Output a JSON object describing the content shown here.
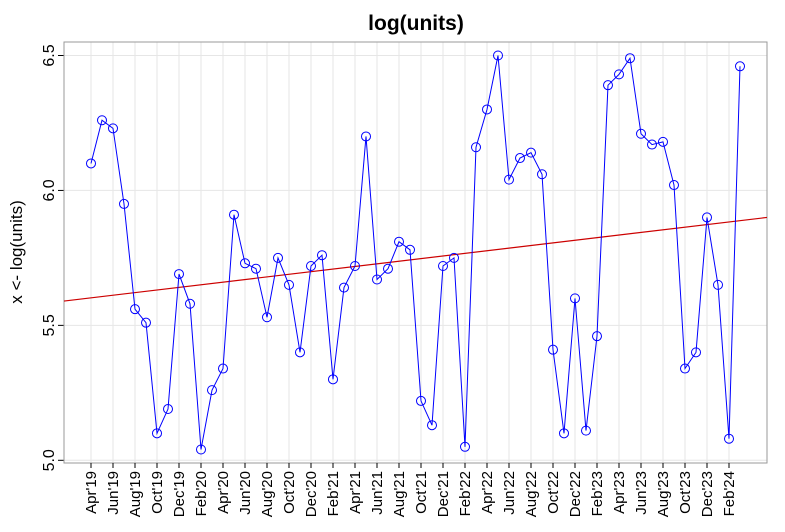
{
  "chart_data": {
    "type": "line",
    "title": "log(units)",
    "y_label": "x <- log(units)",
    "categories": [
      "Apr'19",
      null,
      "Jun'19",
      null,
      "Aug'19",
      null,
      "Oct'19",
      null,
      "Dec'19",
      null,
      "Feb'20",
      null,
      "Apr'20",
      null,
      "Jun'20",
      null,
      "Aug'20",
      null,
      "Oct'20",
      null,
      "Dec'20",
      null,
      "Feb'21",
      null,
      "Apr'21",
      null,
      "Jun'21",
      null,
      "Aug'21",
      null,
      "Oct'21",
      null,
      "Dec'21",
      null,
      "Feb'22",
      null,
      "Apr'22",
      null,
      "Jun'22",
      null,
      "Aug'22",
      null,
      "Oct'22",
      null,
      "Dec'22",
      null,
      "Feb'23",
      null,
      "Apr'23",
      null,
      "Jun'23",
      null,
      "Aug'23",
      null,
      "Oct'23",
      null,
      "Dec'23",
      null,
      "Feb'24",
      null
    ],
    "series": [
      {
        "color": "#0000ff",
        "values": [
          6.1,
          6.26,
          6.23,
          5.95,
          5.56,
          5.51,
          5.1,
          5.19,
          5.69,
          5.58,
          5.04,
          5.26,
          5.34,
          5.91,
          5.73,
          5.71,
          5.53,
          5.75,
          5.65,
          5.4,
          5.72,
          5.76,
          5.3,
          5.64,
          5.72,
          6.2,
          5.67,
          5.71,
          5.81,
          5.78,
          5.22,
          5.13,
          5.72,
          5.75,
          5.05,
          6.16,
          6.3,
          6.5,
          6.04,
          6.12,
          6.14,
          6.06,
          5.41,
          5.1,
          5.6,
          5.11,
          5.46,
          6.39,
          6.43,
          6.49,
          6.21,
          6.17,
          6.18,
          6.02,
          5.34,
          5.4,
          5.9,
          5.65,
          5.08,
          6.46
        ]
      }
    ],
    "trend": {
      "color": "#cc0000",
      "start": 5.602,
      "end": 5.888
    },
    "ylim": [
      4.99,
      6.55
    ],
    "yticks": [
      {
        "value": 5,
        "label": "5.0"
      },
      5.5,
      {
        "value": 6,
        "label": "6.0"
      },
      6.5
    ],
    "grid": true
  }
}
